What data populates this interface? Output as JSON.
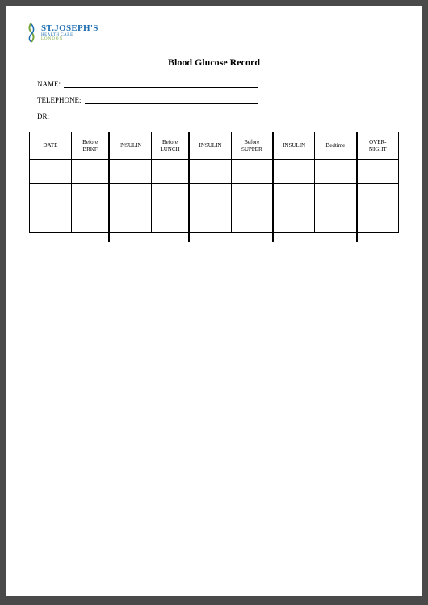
{
  "logo": {
    "main": "ST.JOSEPH'S",
    "sub1": "HEALTH CARE",
    "sub2": "LONDON",
    "icon_color_green": "#7aa843",
    "icon_color_blue": "#1a6bb0"
  },
  "title": "Blood Glucose Record",
  "fields": {
    "name_label": "NAME:",
    "telephone_label": "TELEPHONE:",
    "dr_label": "DR:",
    "name_line_width": 240,
    "telephone_line_width": 215,
    "dr_line_width": 258
  },
  "table": {
    "columns": [
      "DATE",
      "Before\nBRKF",
      "INSULIN",
      "Before\nLUNCH",
      "INSULIN",
      "Before\nSUPPER",
      "INSULIN",
      "Bedtime",
      "OVER-\nNIGHT"
    ],
    "col_classes": [
      "col-date",
      "col-bf",
      "col-ins",
      "col-lunch",
      "col-ins2",
      "col-supper",
      "col-ins3",
      "col-bed",
      "col-night"
    ],
    "rows": [
      [
        "",
        "",
        "",
        "",
        "",
        "",
        "",
        "",
        ""
      ],
      [
        "",
        "",
        "",
        "",
        "",
        "",
        "",
        "",
        ""
      ],
      [
        "",
        "",
        "",
        "",
        "",
        "",
        "",
        "",
        ""
      ]
    ]
  }
}
